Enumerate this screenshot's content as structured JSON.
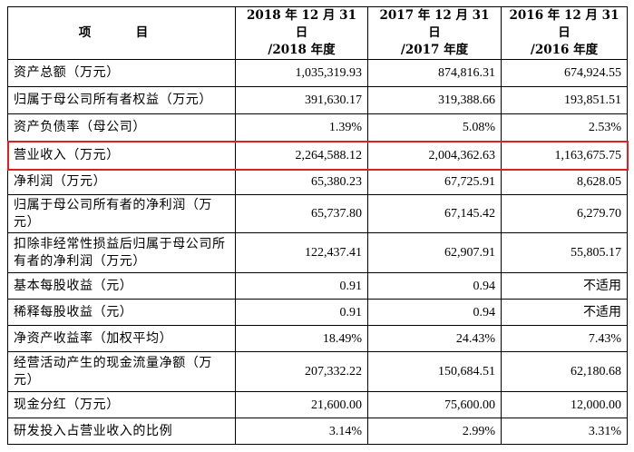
{
  "table": {
    "header": {
      "item": "项　目",
      "col1": [
        "2018 年 12 月 31 日",
        "/2018 年度"
      ],
      "col2": [
        "2017 年 12 月 31 日",
        "/2017 年度"
      ],
      "col3": [
        "2016 年 12 月 31 日",
        "/2016 年度"
      ]
    },
    "rows": [
      {
        "label": "资产总额（万元）",
        "v2018": "1,035,319.93",
        "v2017": "874,816.31",
        "v2016": "674,924.55"
      },
      {
        "label": "归属于母公司所有者权益（万元）",
        "v2018": "391,630.17",
        "v2017": "319,388.66",
        "v2016": "193,851.51"
      },
      {
        "label": "资产负债率（母公司）",
        "v2018": "1.39%",
        "v2017": "5.08%",
        "v2016": "2.53%"
      },
      {
        "label": "营业收入（万元）",
        "v2018": "2,264,588.12",
        "v2017": "2,004,362.63",
        "v2016": "1,163,675.75"
      },
      {
        "label": "净利润（万元）",
        "v2018": "65,380.23",
        "v2017": "67,725.91",
        "v2016": "8,628.05"
      },
      {
        "label": "归属于母公司所有者的净利润（万元）",
        "v2018": "65,737.80",
        "v2017": "67,145.42",
        "v2016": "6,279.70"
      },
      {
        "label": "扣除非经常性损益后归属于母公司所有者的净利润（万元）",
        "v2018": "122,437.41",
        "v2017": "62,907.91",
        "v2016": "55,805.17"
      },
      {
        "label": "基本每股收益（元）",
        "v2018": "0.91",
        "v2017": "0.94",
        "v2016": "不适用"
      },
      {
        "label": "稀释每股收益（元）",
        "v2018": "0.91",
        "v2017": "0.94",
        "v2016": "不适用"
      },
      {
        "label": "净资产收益率（加权平均）",
        "v2018": "18.49%",
        "v2017": "24.43%",
        "v2016": "7.43%"
      },
      {
        "label": "经营活动产生的现金流量净额（万元）",
        "v2018": "207,332.22",
        "v2017": "150,684.51",
        "v2016": "62,180.68"
      },
      {
        "label": "现金分红（万元）",
        "v2018": "21,600.00",
        "v2017": "75,600.00",
        "v2016": "12,000.00"
      },
      {
        "label": "研发投入占营业收入的比例",
        "v2018": "3.14%",
        "v2017": "2.99%",
        "v2016": "3.31%"
      }
    ],
    "highlighted_row": "营业收入（万元）",
    "highlight_color": "#e0201e"
  }
}
